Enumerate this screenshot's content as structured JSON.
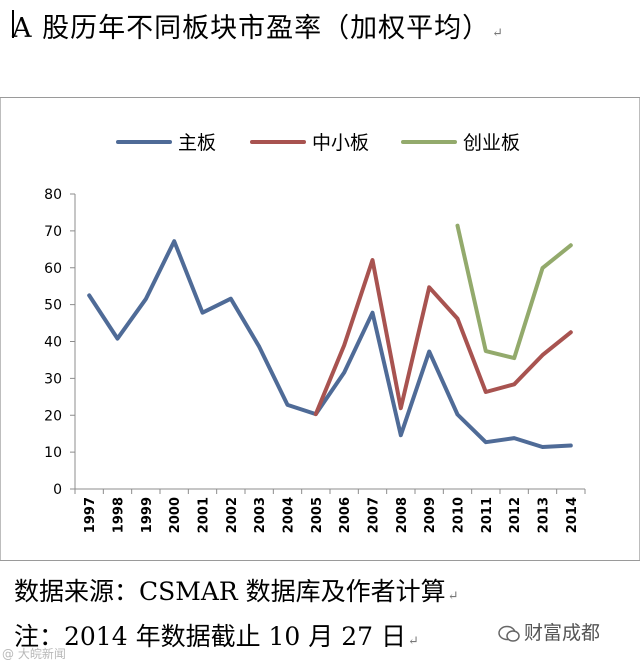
{
  "header": {
    "title": "A 股历年不同板块市盈率（加权平均）",
    "mark": "↵"
  },
  "chart_data": {
    "type": "line",
    "title": "A 股历年不同板块市盈率（加权平均）",
    "xlabel": "",
    "ylabel": "",
    "ylim": [
      0,
      80
    ],
    "yticks": [
      0,
      10,
      20,
      30,
      40,
      50,
      60,
      70,
      80
    ],
    "categories": [
      "1997",
      "1998",
      "1999",
      "2000",
      "2001",
      "2002",
      "2003",
      "2004",
      "2005",
      "2006",
      "2007",
      "2008",
      "2009",
      "2010",
      "2011",
      "2012",
      "2013",
      "2014"
    ],
    "legend_position": "top",
    "series": [
      {
        "name": "主板",
        "color": "#4f6b97",
        "values": [
          52.5,
          40.8,
          51.5,
          67.2,
          47.8,
          51.6,
          38.6,
          22.8,
          20.3,
          31.6,
          47.8,
          14.6,
          37.3,
          20.2,
          12.7,
          13.8,
          11.4,
          11.8
        ]
      },
      {
        "name": "中小板",
        "color": "#a85350",
        "values": [
          null,
          null,
          null,
          null,
          null,
          null,
          null,
          null,
          20.3,
          39.0,
          62.1,
          21.9,
          54.7,
          46.2,
          26.3,
          28.4,
          36.3,
          42.5
        ]
      },
      {
        "name": "创业板",
        "color": "#93aa6c",
        "values": [
          null,
          null,
          null,
          null,
          null,
          null,
          null,
          null,
          null,
          null,
          null,
          null,
          null,
          71.4,
          37.4,
          35.5,
          59.9,
          66.1
        ]
      }
    ]
  },
  "footer": {
    "source": "数据来源：CSMAR 数据库及作者计算",
    "note": "注：2014 年数据截止 10 月 27 日",
    "mark": "↵"
  },
  "watermarks": {
    "left": "@ 大皖新闻",
    "right": "财富成都"
  }
}
